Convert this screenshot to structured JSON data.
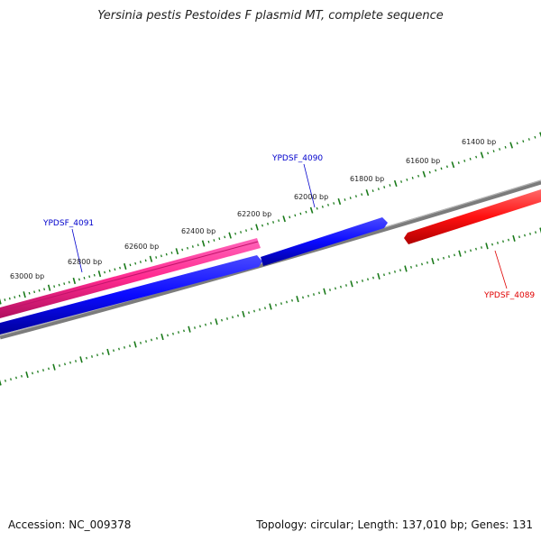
{
  "title": "Yersinia pestis Pestoides F plasmid MT, complete sequence",
  "accession": "Accession: NC_009378",
  "summary": "Topology: circular; Length: 137,010 bp; Genes: 131",
  "ticks": [
    "61400 bp",
    "61600 bp",
    "61800 bp",
    "62000 bp",
    "62200 bp",
    "62400 bp",
    "62600 bp",
    "62800 bp",
    "63000 bp"
  ],
  "genes": [
    {
      "name": "YPDSF_4089",
      "color": "#e00000"
    },
    {
      "name": "YPDSF_4090",
      "color": "#0000cc"
    },
    {
      "name": "YPDSF_4091",
      "color": "#0000cc"
    }
  ],
  "colors": {
    "backbone": "#808080",
    "forward_feature": "#ff3399",
    "reverse_feature": "#0000ff",
    "reverse_feature_right": "#ff0000",
    "tick": "#1a7a1a"
  }
}
